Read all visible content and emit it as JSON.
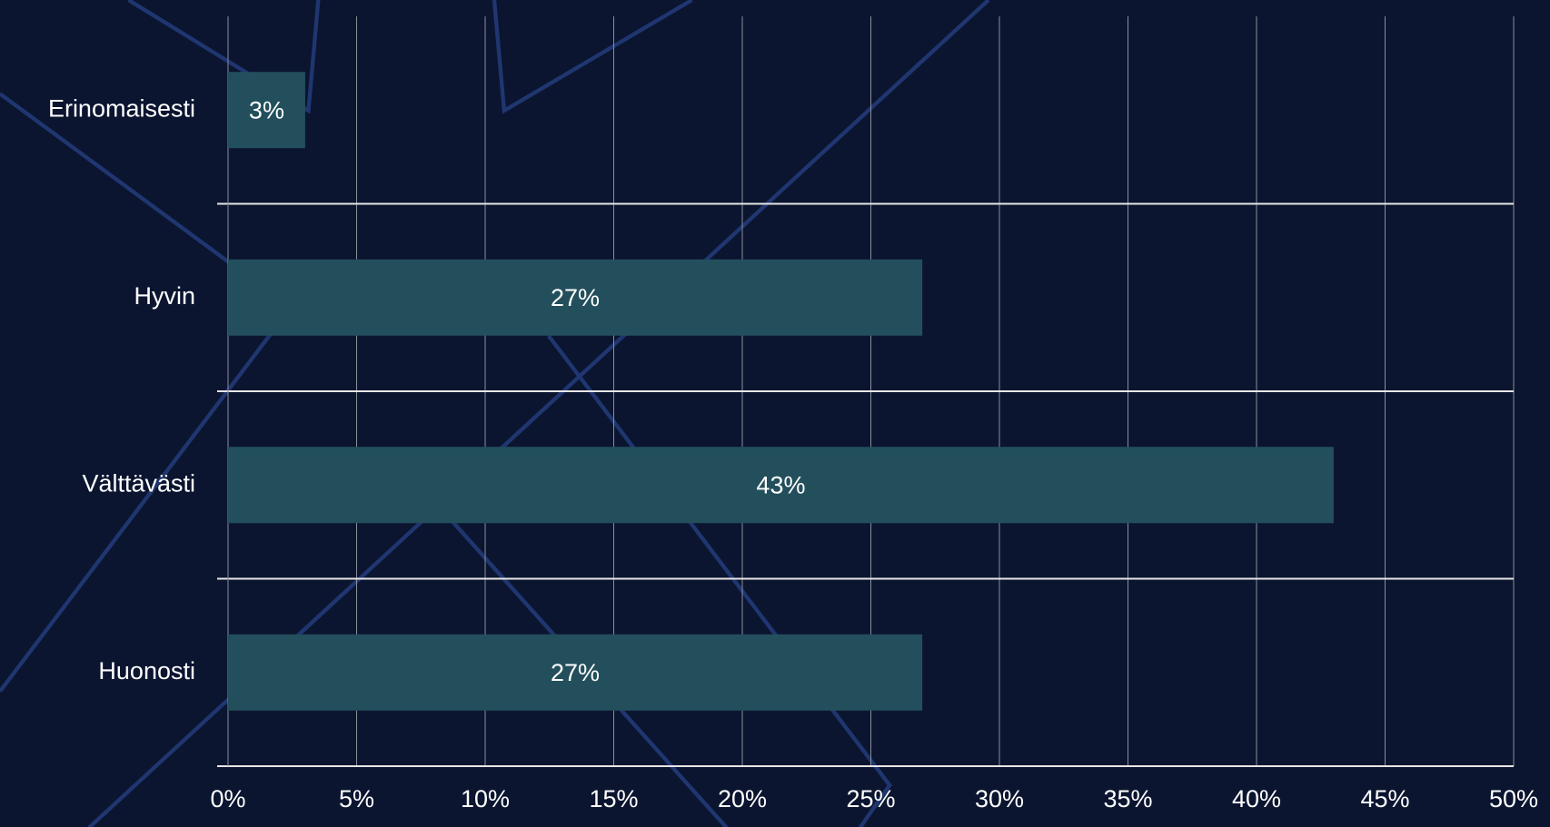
{
  "chart_data": {
    "type": "bar",
    "orientation": "horizontal",
    "categories": [
      "Erinomaisesti",
      "Hyvin",
      "Välttävästi",
      "Huonosti"
    ],
    "values": [
      3,
      27,
      43,
      27
    ],
    "value_labels": [
      "3%",
      "27%",
      "43%",
      "27%"
    ],
    "color": "#234f5c",
    "xlim": [
      0,
      50
    ],
    "xticks": [
      {
        "value": 0,
        "label": "0%"
      },
      {
        "value": 5,
        "label": "5%"
      },
      {
        "value": 10,
        "label": "10%"
      },
      {
        "value": 15,
        "label": "15%"
      },
      {
        "value": 20,
        "label": "20%"
      },
      {
        "value": 25,
        "label": "25%"
      },
      {
        "value": 30,
        "label": "30%"
      },
      {
        "value": 35,
        "label": "35%"
      },
      {
        "value": 40,
        "label": "40%"
      },
      {
        "value": 45,
        "label": "45%"
      },
      {
        "value": 50,
        "label": "50%"
      }
    ],
    "grid": true
  }
}
